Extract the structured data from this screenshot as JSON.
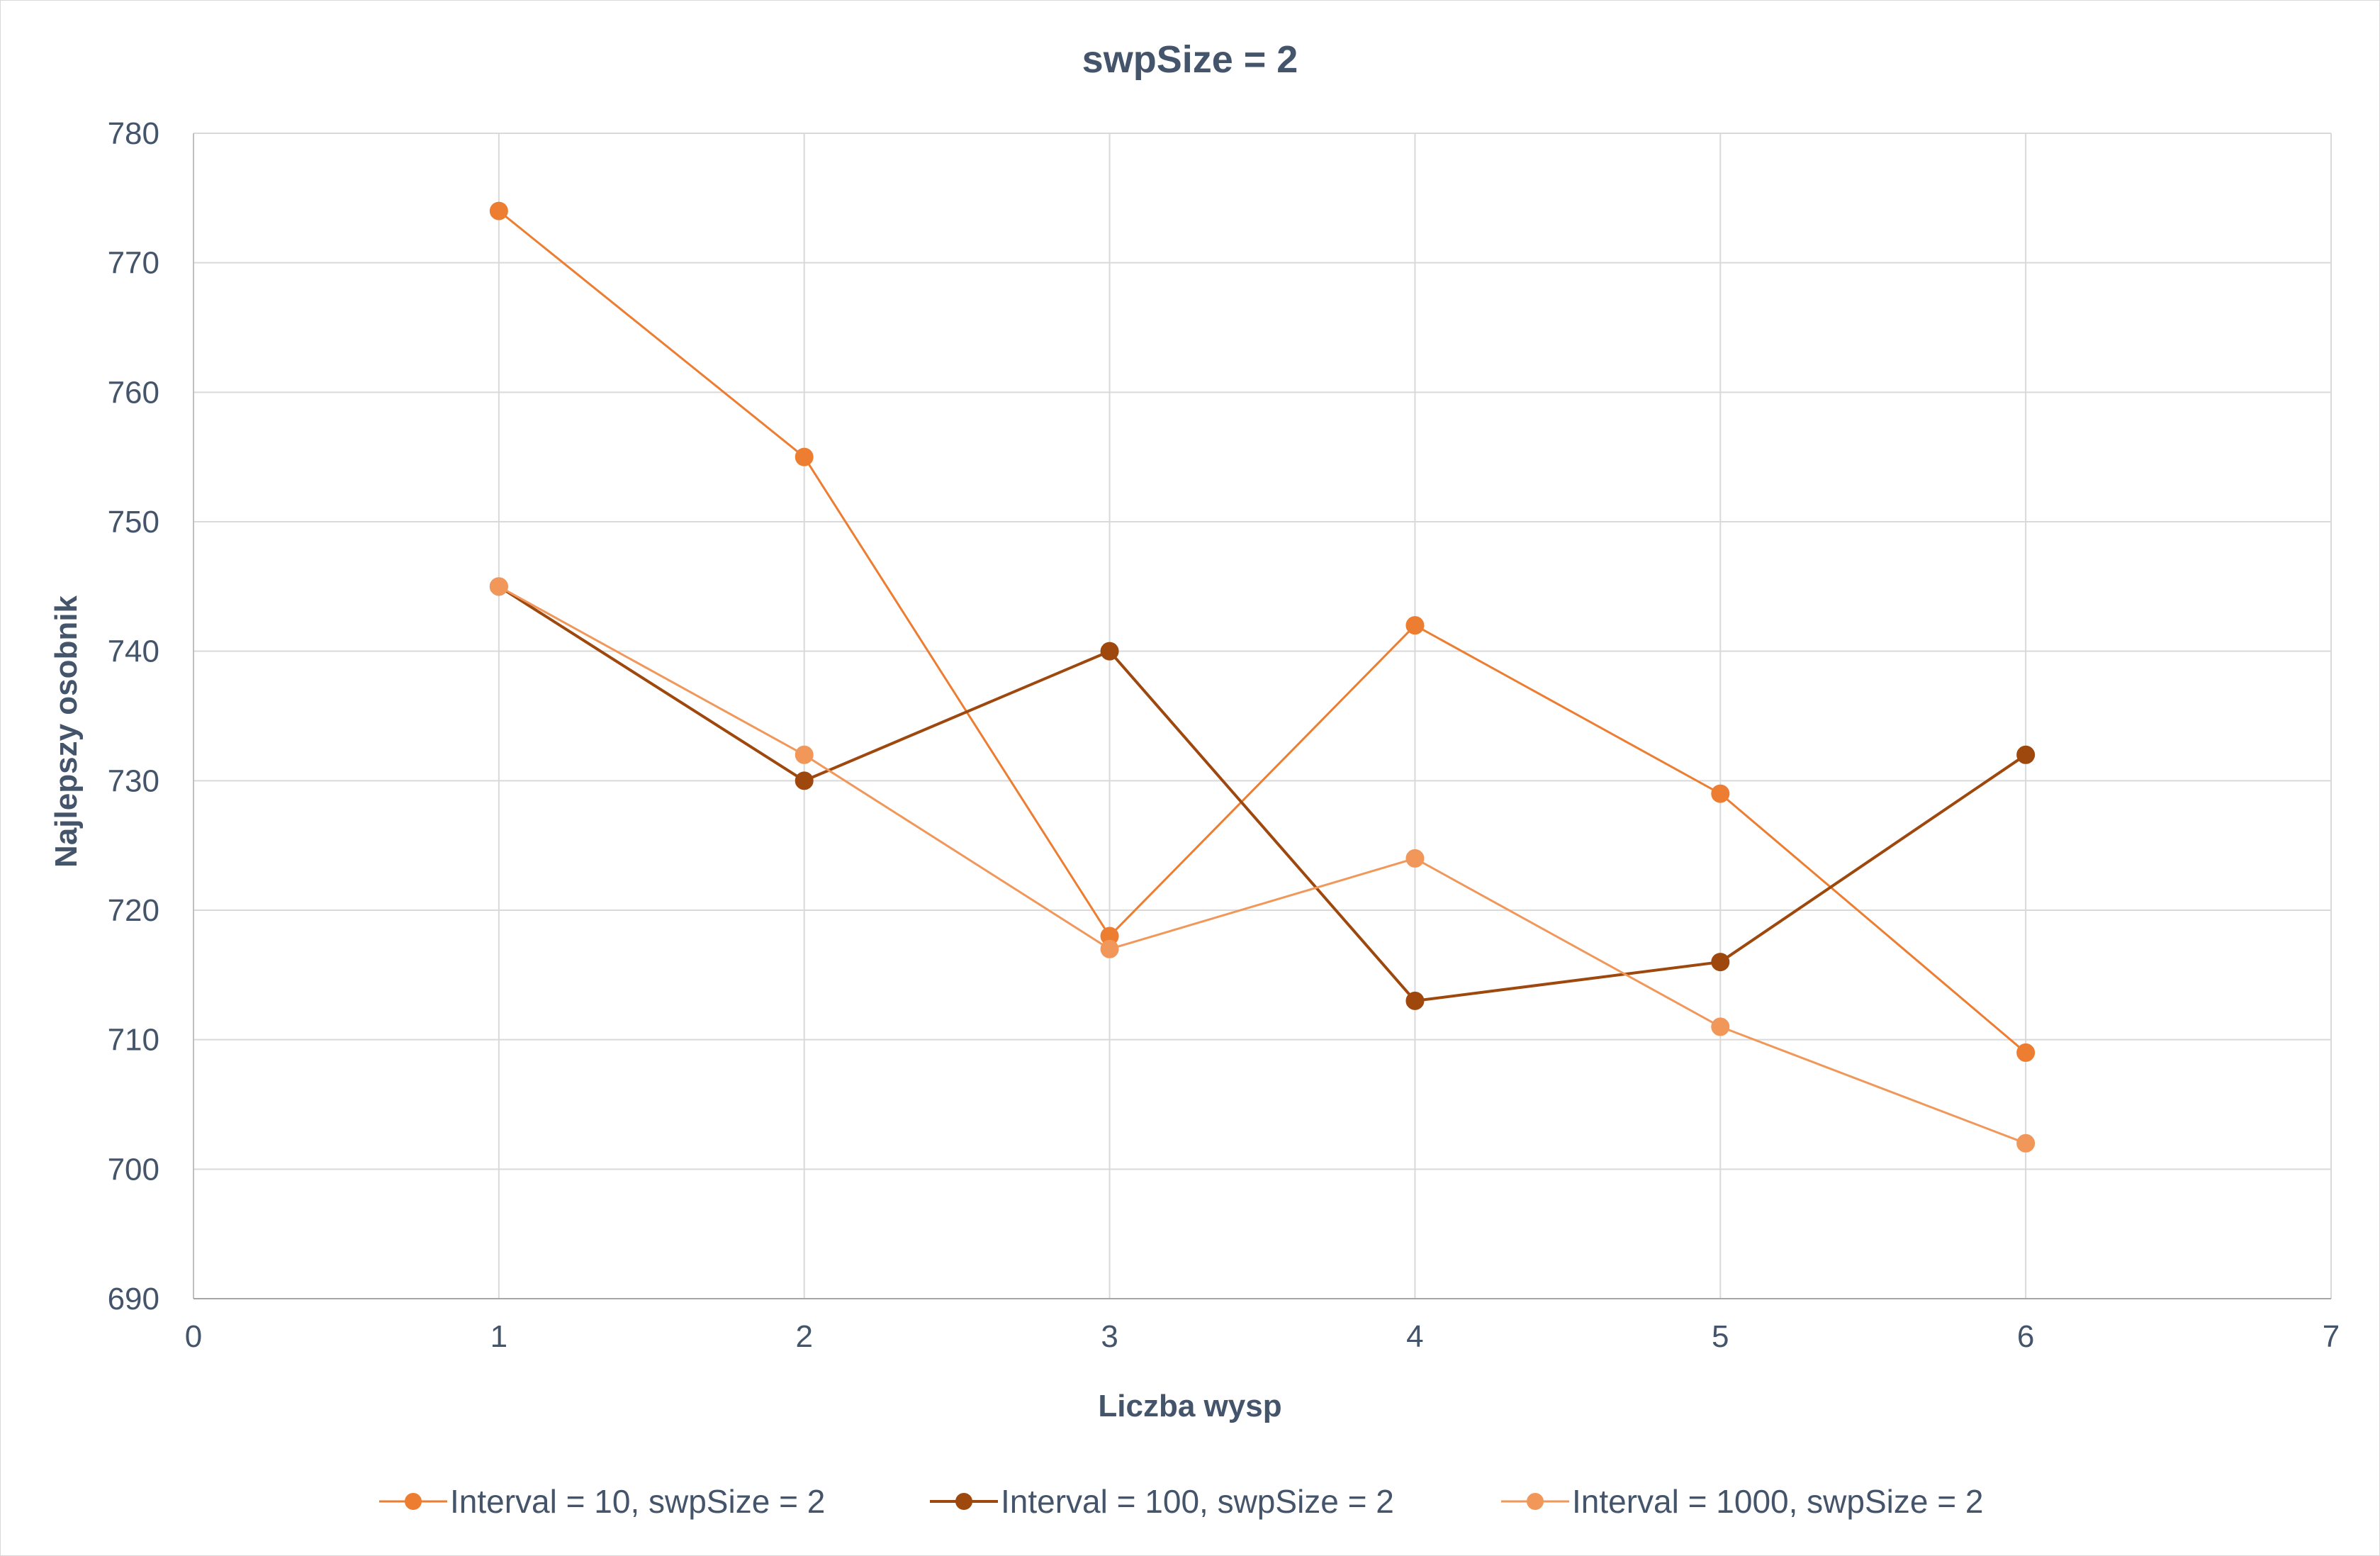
{
  "chart_data": {
    "type": "scatter",
    "title": "swpSize = 2",
    "xlabel": "Liczba wysp",
    "ylabel": "Najlepszy osobnik",
    "xlim": [
      0,
      7
    ],
    "ylim": [
      690,
      780
    ],
    "xticks": [
      0,
      1,
      2,
      3,
      4,
      5,
      6,
      7
    ],
    "yticks": [
      690,
      700,
      710,
      720,
      730,
      740,
      750,
      760,
      770,
      780
    ],
    "grid": true,
    "legend": "bottom",
    "series": [
      {
        "name": "Interval = 10, swpSize = 2",
        "color": "#ed7d31",
        "line_width": 3,
        "x": [
          1,
          2,
          3,
          4,
          5,
          6
        ],
        "y": [
          774,
          755,
          718,
          742,
          729,
          709
        ]
      },
      {
        "name": "Interval = 100, swpSize = 2",
        "color": "#9e480e",
        "line_width": 4,
        "x": [
          1,
          2,
          3,
          4,
          5,
          6
        ],
        "y": [
          745,
          730,
          740,
          713,
          716,
          732
        ]
      },
      {
        "name": "Interval = 1000, swpSize = 2",
        "color": "#f1975a",
        "line_width": 3,
        "x": [
          1,
          2,
          3,
          4,
          5,
          6
        ],
        "y": [
          745,
          732,
          717,
          724,
          711,
          702
        ]
      }
    ]
  }
}
